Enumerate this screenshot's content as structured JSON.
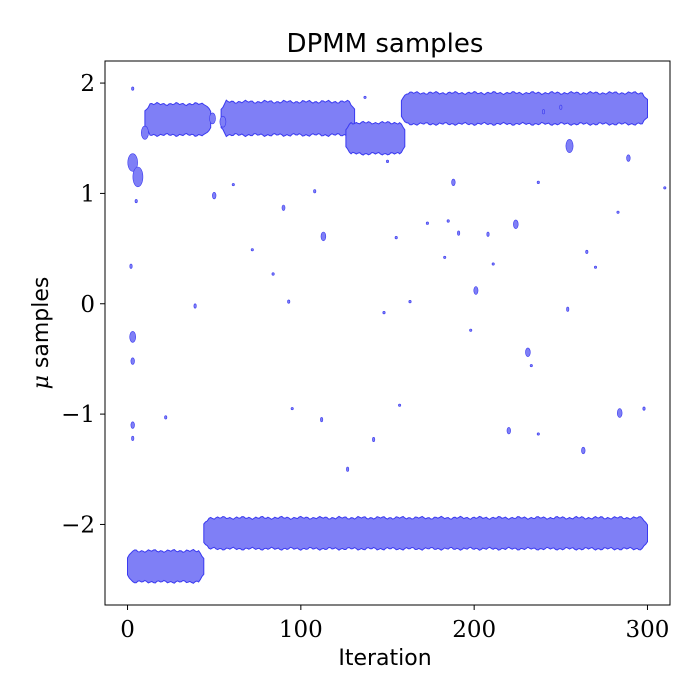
{
  "chart_data": {
    "type": "area",
    "title": "DPMM samples",
    "xlabel": "Iteration",
    "ylabel_symbol": "μ",
    "ylabel_text": " samples",
    "xlim": [
      -13,
      313
    ],
    "ylim": [
      -2.73,
      2.2
    ],
    "xticks": [
      0,
      100,
      200,
      300
    ],
    "xtick_labels": [
      "0",
      "100",
      "200",
      "300"
    ],
    "yticks": [
      2,
      1,
      0,
      -1,
      -2
    ],
    "ytick_labels": [
      "2",
      "1",
      "0",
      "−1",
      "−2"
    ],
    "grid": false,
    "legend": "none",
    "colors": {
      "fill": "#7f7ff6",
      "edge": "#3a3af0"
    },
    "bands": [
      {
        "x": [
          0,
          44
        ],
        "center": -2.38,
        "half_width": 0.14
      },
      {
        "x": [
          44,
          300
        ],
        "center": -2.08,
        "half_width": 0.14
      },
      {
        "x": [
          10,
          48
        ],
        "center": 1.67,
        "half_width": 0.14
      },
      {
        "x": [
          54,
          131
        ],
        "center": 1.68,
        "half_width": 0.15
      },
      {
        "x": [
          126,
          160
        ],
        "center": 1.5,
        "half_width": 0.14
      },
      {
        "x": [
          158,
          300
        ],
        "center": 1.77,
        "half_width": 0.14
      }
    ],
    "samples": [
      {
        "x": 3,
        "y": 1.28,
        "size": 0.08
      },
      {
        "x": 6,
        "y": 1.15,
        "size": 0.09
      },
      {
        "x": 10,
        "y": 1.55,
        "size": 0.06
      },
      {
        "x": 3,
        "y": -0.3,
        "size": 0.05
      },
      {
        "x": 3,
        "y": -0.52,
        "size": 0.03
      },
      {
        "x": 3,
        "y": -1.1,
        "size": 0.03
      },
      {
        "x": 3,
        "y": -1.22,
        "size": 0.02
      },
      {
        "x": 3,
        "y": 1.95,
        "size": 0.015
      },
      {
        "x": 2,
        "y": 0.34,
        "size": 0.02
      },
      {
        "x": 5,
        "y": 0.93,
        "size": 0.015
      },
      {
        "x": 22,
        "y": -1.03,
        "size": 0.015
      },
      {
        "x": 39,
        "y": -0.02,
        "size": 0.02
      },
      {
        "x": 49,
        "y": 1.68,
        "size": 0.05
      },
      {
        "x": 55,
        "y": 1.65,
        "size": 0.05
      },
      {
        "x": 50,
        "y": 0.98,
        "size": 0.03
      },
      {
        "x": 90,
        "y": 0.87,
        "size": 0.025
      },
      {
        "x": 93,
        "y": 0.02,
        "size": 0.015
      },
      {
        "x": 108,
        "y": 1.02,
        "size": 0.015
      },
      {
        "x": 113,
        "y": 0.61,
        "size": 0.04
      },
      {
        "x": 112,
        "y": -1.05,
        "size": 0.02
      },
      {
        "x": 127,
        "y": -1.5,
        "size": 0.02
      },
      {
        "x": 142,
        "y": -1.23,
        "size": 0.02
      },
      {
        "x": 163,
        "y": 0.02,
        "size": 0.012
      },
      {
        "x": 188,
        "y": 1.1,
        "size": 0.03
      },
      {
        "x": 191,
        "y": 0.64,
        "size": 0.02
      },
      {
        "x": 201,
        "y": 0.12,
        "size": 0.035
      },
      {
        "x": 208,
        "y": 0.63,
        "size": 0.02
      },
      {
        "x": 220,
        "y": -1.15,
        "size": 0.03
      },
      {
        "x": 224,
        "y": 0.72,
        "size": 0.04
      },
      {
        "x": 231,
        "y": -0.44,
        "size": 0.04
      },
      {
        "x": 240,
        "y": 1.74,
        "size": 0.02
      },
      {
        "x": 255,
        "y": 1.43,
        "size": 0.06
      },
      {
        "x": 254,
        "y": -0.05,
        "size": 0.02
      },
      {
        "x": 263,
        "y": -1.33,
        "size": 0.03
      },
      {
        "x": 265,
        "y": 0.47,
        "size": 0.015
      },
      {
        "x": 284,
        "y": -0.99,
        "size": 0.04
      },
      {
        "x": 289,
        "y": 1.32,
        "size": 0.03
      },
      {
        "x": 155,
        "y": 0.6,
        "size": 0.012
      },
      {
        "x": 173,
        "y": 0.73,
        "size": 0.012
      },
      {
        "x": 185,
        "y": 0.75,
        "size": 0.012
      },
      {
        "x": 84,
        "y": 0.27,
        "size": 0.012
      },
      {
        "x": 61,
        "y": 1.08,
        "size": 0.01
      },
      {
        "x": 72,
        "y": 0.49,
        "size": 0.01
      },
      {
        "x": 150,
        "y": 1.29,
        "size": 0.012
      },
      {
        "x": 237,
        "y": 1.1,
        "size": 0.012
      },
      {
        "x": 250,
        "y": 1.78,
        "size": 0.02
      },
      {
        "x": 283,
        "y": 0.83,
        "size": 0.01
      },
      {
        "x": 148,
        "y": -0.08,
        "size": 0.012
      },
      {
        "x": 198,
        "y": -0.24,
        "size": 0.01
      },
      {
        "x": 237,
        "y": -1.18,
        "size": 0.01
      },
      {
        "x": 298,
        "y": -0.95,
        "size": 0.015
      },
      {
        "x": 310,
        "y": 1.05,
        "size": 0.01
      },
      {
        "x": 95,
        "y": -0.95,
        "size": 0.01
      },
      {
        "x": 137,
        "y": 1.87,
        "size": 0.01
      },
      {
        "x": 183,
        "y": 0.42,
        "size": 0.01
      },
      {
        "x": 211,
        "y": 0.36,
        "size": 0.01
      },
      {
        "x": 270,
        "y": 0.33,
        "size": 0.01
      },
      {
        "x": 233,
        "y": -0.56,
        "size": 0.01
      },
      {
        "x": 157,
        "y": -0.92,
        "size": 0.01
      }
    ]
  }
}
